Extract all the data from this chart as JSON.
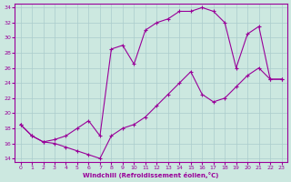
{
  "xlabel": "Windchill (Refroidissement éolien,°C)",
  "bg_color": "#cce8e0",
  "line_color": "#990099",
  "grid_color": "#aacccc",
  "xlim": [
    -0.5,
    23.5
  ],
  "ylim": [
    13.5,
    34.5
  ],
  "xticks": [
    0,
    1,
    2,
    3,
    4,
    5,
    6,
    7,
    8,
    9,
    10,
    11,
    12,
    13,
    14,
    15,
    16,
    17,
    18,
    19,
    20,
    21,
    22,
    23
  ],
  "yticks": [
    14,
    16,
    18,
    20,
    22,
    24,
    26,
    28,
    30,
    32,
    34
  ],
  "upper_x": [
    0,
    1,
    2,
    3,
    4,
    5,
    6,
    7,
    8,
    9,
    10,
    11,
    12,
    13,
    14,
    15,
    16,
    17,
    18,
    19,
    20,
    21,
    22,
    23
  ],
  "upper_y": [
    18.5,
    17.0,
    16.2,
    16.5,
    17.0,
    18.0,
    19.0,
    17.0,
    28.5,
    29.0,
    26.5,
    31.0,
    32.0,
    32.5,
    33.5,
    33.5,
    34.0,
    33.5,
    32.0,
    26.0,
    30.5,
    31.5,
    24.5,
    24.5
  ],
  "lower_x": [
    0,
    1,
    2,
    3,
    4,
    5,
    6,
    7,
    8,
    9,
    10,
    11,
    12,
    13,
    14,
    15,
    16,
    17,
    18,
    19,
    20,
    21,
    22,
    23
  ],
  "lower_y": [
    18.5,
    17.0,
    16.2,
    16.0,
    15.5,
    15.0,
    14.5,
    14.0,
    17.0,
    18.0,
    18.5,
    19.5,
    21.0,
    22.5,
    24.0,
    25.5,
    22.5,
    21.5,
    22.0,
    23.5,
    25.0,
    26.0,
    24.5,
    24.5
  ]
}
